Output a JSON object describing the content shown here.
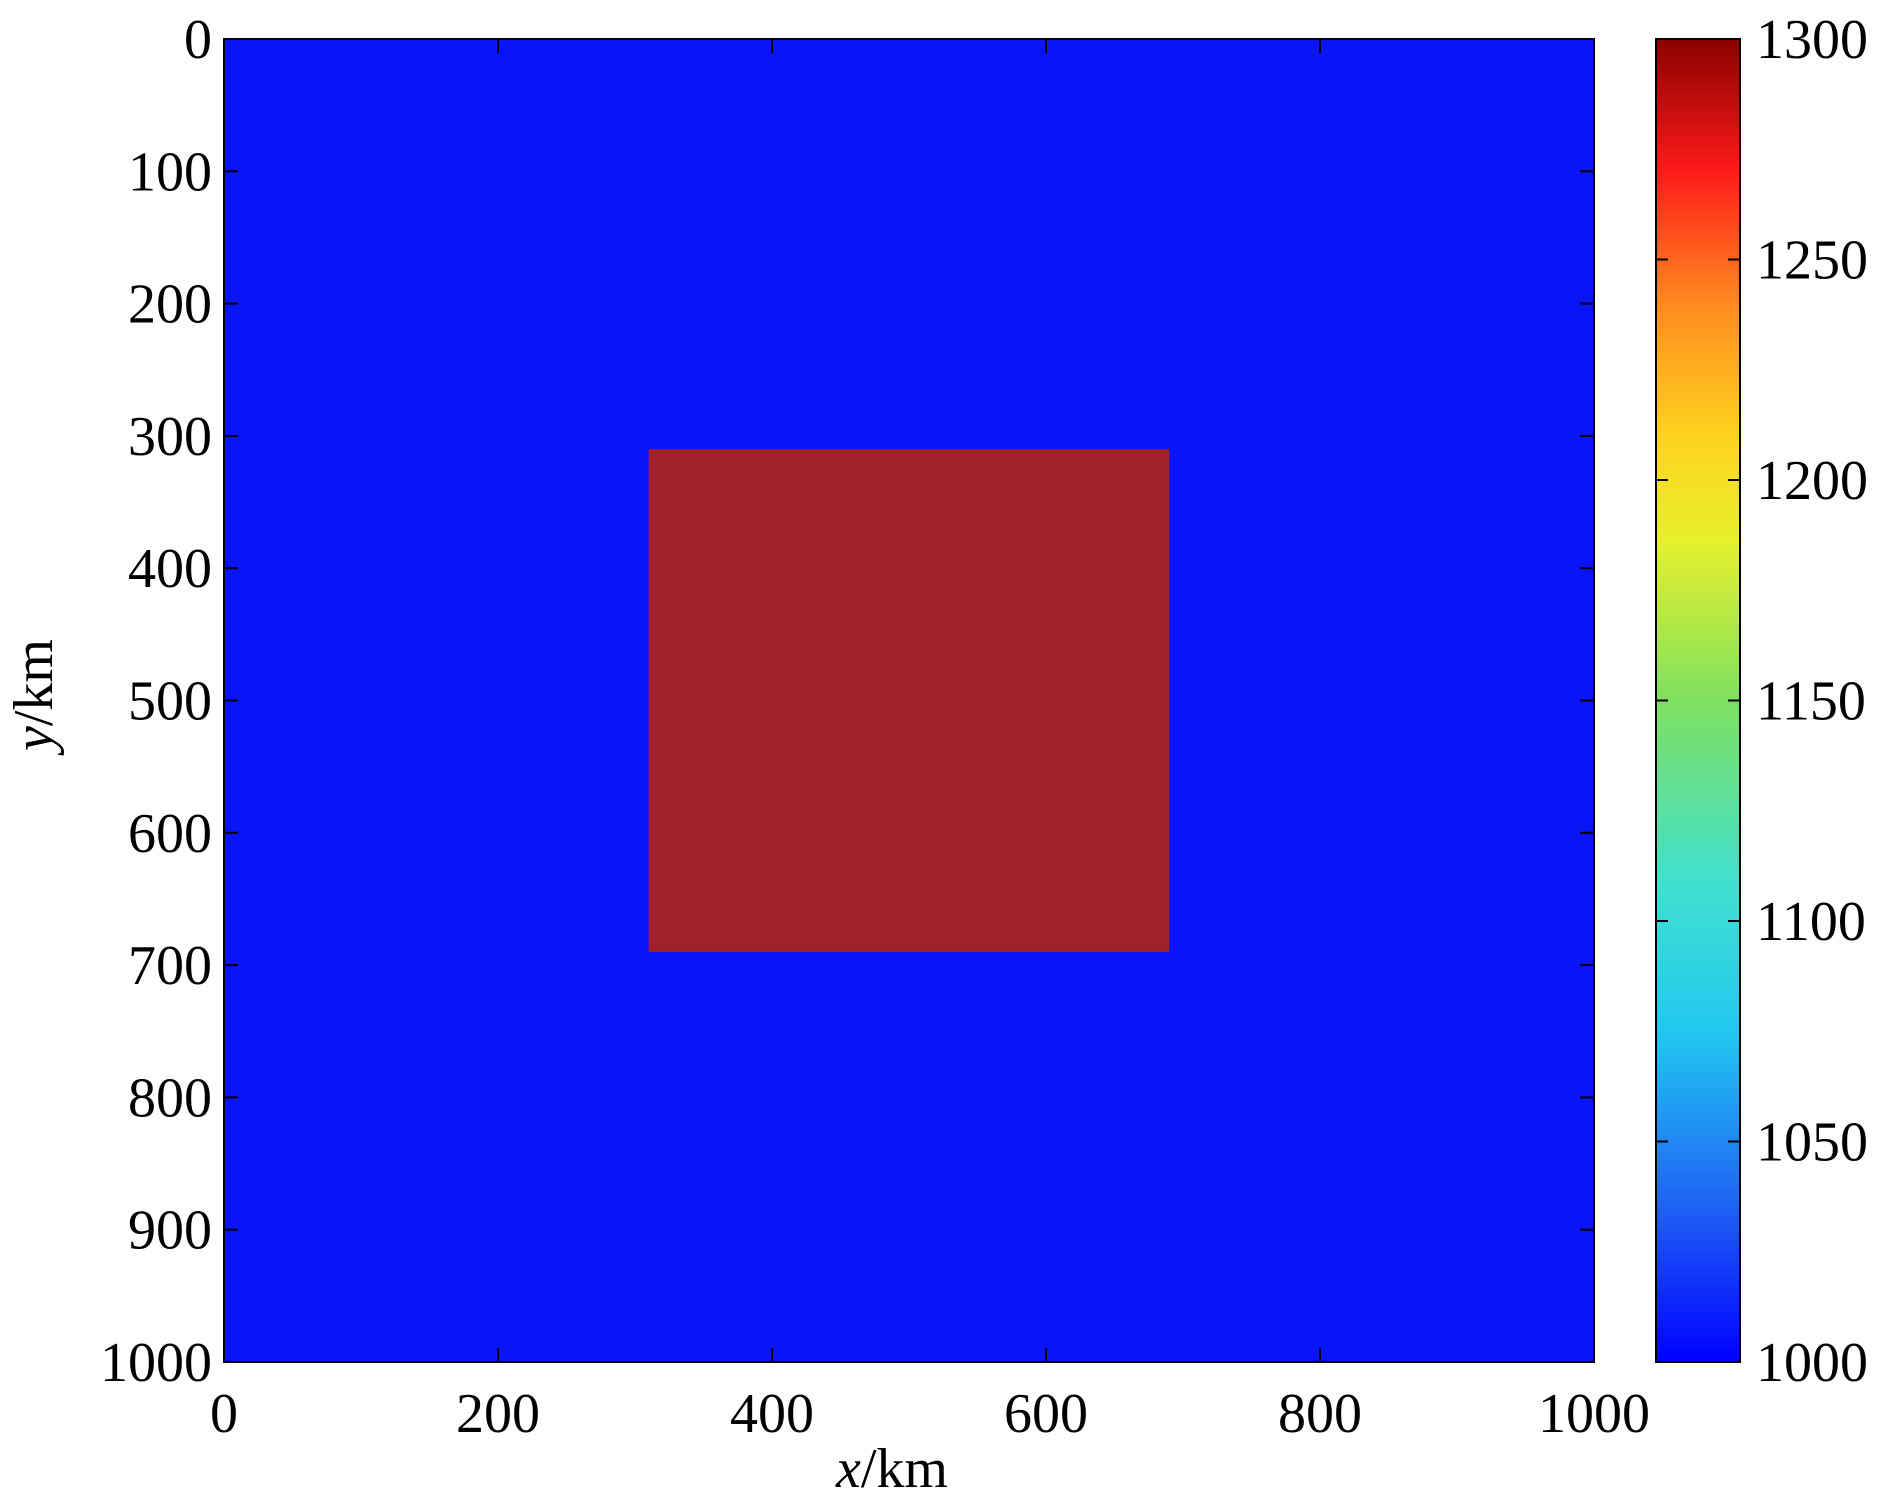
{
  "chart_data": {
    "type": "heatmap",
    "title": "",
    "xlabel_var": "x",
    "xlabel_unit": "/km",
    "ylabel_var": "y",
    "ylabel_unit": "/km",
    "xlim": [
      0,
      1000
    ],
    "ylim": [
      0,
      1000
    ],
    "y_axis_reversed": true,
    "x_ticks": [
      "0",
      "200",
      "400",
      "600",
      "800",
      "1000"
    ],
    "y_ticks": [
      "0",
      "100",
      "200",
      "300",
      "400",
      "500",
      "600",
      "700",
      "800",
      "900",
      "1000"
    ],
    "background_value": 1000,
    "anomaly": {
      "x_range": [
        310,
        690
      ],
      "y_range": [
        310,
        690
      ],
      "value": 1300
    },
    "colorbar": {
      "range": [
        1000,
        1300
      ],
      "ticks": [
        "1000",
        "1050",
        "1100",
        "1150",
        "1200",
        "1250",
        "1300"
      ],
      "colormap": "jet"
    },
    "colors": {
      "background": "#0a14f8",
      "anomaly": "#a02228"
    }
  }
}
